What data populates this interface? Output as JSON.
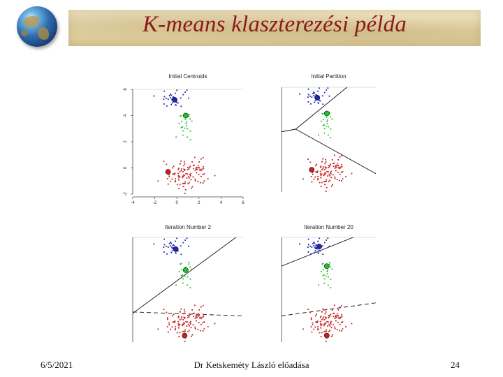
{
  "slide": {
    "title": "K-means klaszterezési példa",
    "footer_date": "6/5/2021",
    "footer_center": "Dr Ketskeméty László előadása",
    "page_number": "24",
    "globe_icon": "globe-icon"
  },
  "colors": {
    "title": "#8b1a1a",
    "cluster_blue": "#1f24b5",
    "cluster_green": "#22c22a",
    "cluster_red": "#c82020"
  },
  "chart_data": [
    {
      "type": "scatter",
      "title": "Initial Centroids",
      "xlim": [
        -4,
        6
      ],
      "ylim": [
        -2,
        6
      ],
      "x_ticks": [
        "-4",
        "-2",
        "0",
        "2",
        "4",
        "6"
      ],
      "y_ticks": [
        "-2",
        "0",
        "2",
        "4",
        "6"
      ],
      "centroids": [
        {
          "cluster": "blue",
          "x": -0.2,
          "y": 5.2
        },
        {
          "cluster": "green",
          "x": 0.8,
          "y": 4.0
        },
        {
          "cluster": "red",
          "x": -0.8,
          "y": -0.3
        }
      ],
      "partition_lines": []
    },
    {
      "type": "scatter",
      "title": "Initial Partition",
      "xlim": [
        -4,
        6
      ],
      "ylim": [
        -2,
        6
      ],
      "centroids": [
        {
          "cluster": "blue",
          "x": -0.2,
          "y": 5.2
        },
        {
          "cluster": "green",
          "x": 0.8,
          "y": 4.0
        },
        {
          "cluster": "red",
          "x": -0.8,
          "y": -0.3
        }
      ],
      "partition_lines": [
        {
          "points": [
            [
              -4,
              2.6
            ],
            [
              -2.5,
              2.8
            ]
          ],
          "dash": false
        },
        {
          "points": [
            [
              -2.5,
              2.8
            ],
            [
              6,
              7.8
            ]
          ],
          "dash": false
        },
        {
          "points": [
            [
              -2.5,
              2.8
            ],
            [
              6,
              -0.6
            ]
          ],
          "dash": false
        }
      ]
    },
    {
      "type": "scatter",
      "title": "Iteration Number  2",
      "xlim": [
        -4,
        6
      ],
      "ylim": [
        -2,
        6
      ],
      "centroids": [
        {
          "cluster": "blue",
          "x": -0.1,
          "y": 5.1
        },
        {
          "cluster": "green",
          "x": 0.8,
          "y": 3.5
        },
        {
          "cluster": "red",
          "x": 0.7,
          "y": -1.5
        }
      ],
      "partition_lines": [
        {
          "points": [
            [
              -4,
              0.2
            ],
            [
              6,
              6.4
            ]
          ],
          "dash": false
        },
        {
          "points": [
            [
              -4,
              0.3
            ],
            [
              6,
              0.0
            ]
          ],
          "dash": true
        }
      ]
    },
    {
      "type": "scatter",
      "title": "Iteration Number  20",
      "xlim": [
        -4,
        6
      ],
      "ylim": [
        -2,
        6
      ],
      "centroids": [
        {
          "cluster": "blue",
          "x": 0.0,
          "y": 5.3
        },
        {
          "cluster": "green",
          "x": 0.8,
          "y": 3.8
        },
        {
          "cluster": "red",
          "x": 0.8,
          "y": -1.5
        }
      ],
      "partition_lines": [
        {
          "points": [
            [
              -4,
              3.8
            ],
            [
              6,
              6.7
            ]
          ],
          "dash": false
        },
        {
          "points": [
            [
              -4,
              0.0
            ],
            [
              6,
              1.0
            ]
          ],
          "dash": true
        }
      ]
    }
  ]
}
